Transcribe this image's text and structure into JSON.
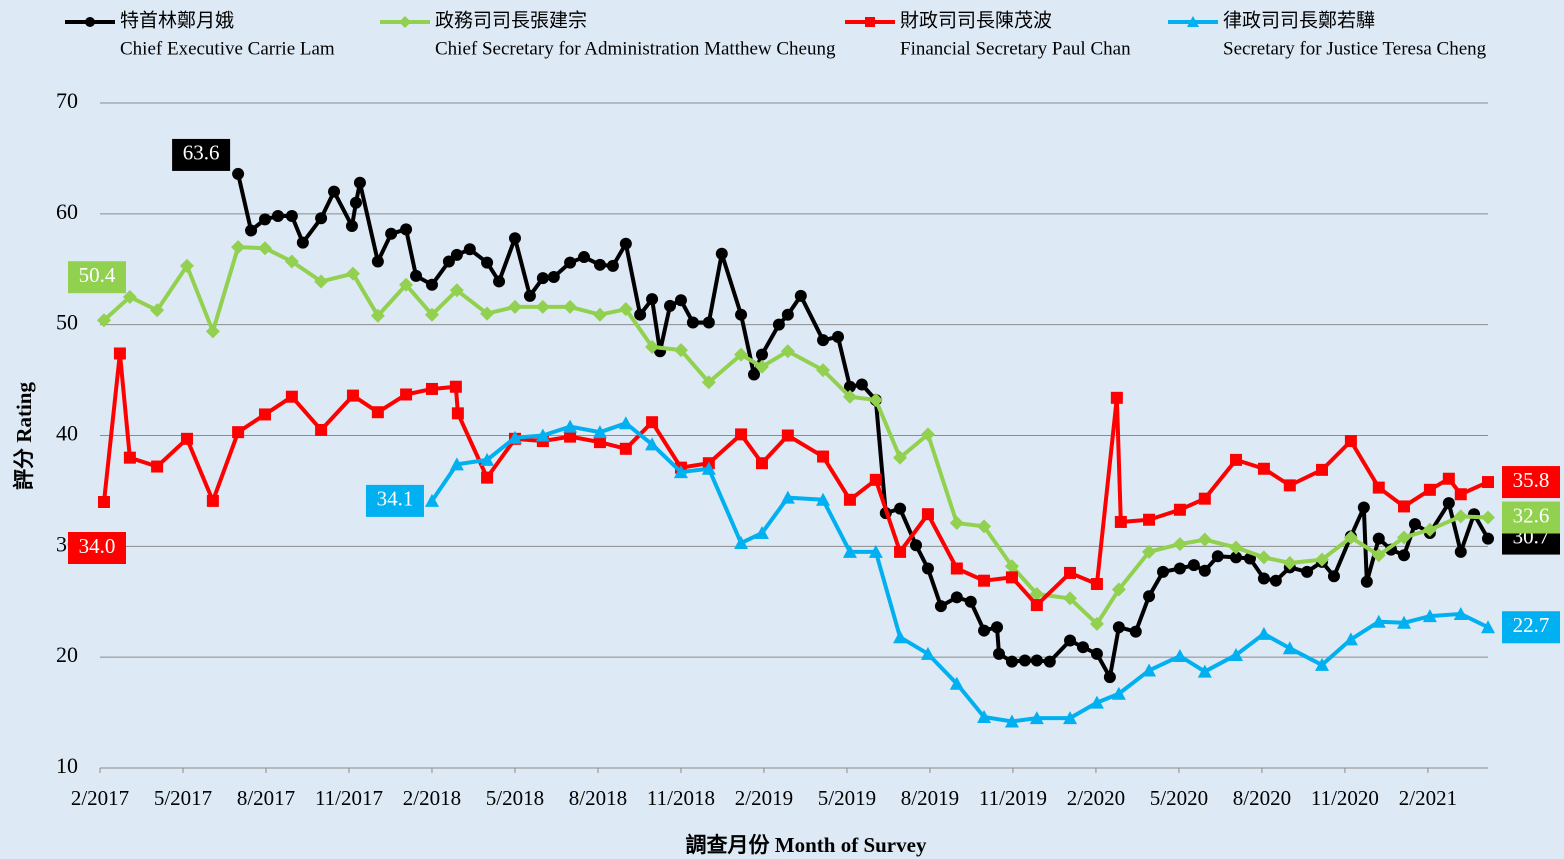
{
  "chart_data": {
    "type": "line",
    "x_label": "調查月份 Month of Survey",
    "y_label": "評分 Rating",
    "xlim": [
      2017.083,
      2021.264
    ],
    "xticks": [
      {
        "value": 2017.083,
        "label": "2/2017"
      },
      {
        "value": 2017.333,
        "label": "5/2017"
      },
      {
        "value": 2017.583,
        "label": "8/2017"
      },
      {
        "value": 2017.833,
        "label": "11/2017"
      },
      {
        "value": 2018.083,
        "label": "2/2018"
      },
      {
        "value": 2018.333,
        "label": "5/2018"
      },
      {
        "value": 2018.583,
        "label": "8/2018"
      },
      {
        "value": 2018.833,
        "label": "11/2018"
      },
      {
        "value": 2019.083,
        "label": "2/2019"
      },
      {
        "value": 2019.333,
        "label": "5/2019"
      },
      {
        "value": 2019.583,
        "label": "8/2019"
      },
      {
        "value": 2019.833,
        "label": "11/2019"
      },
      {
        "value": 2020.083,
        "label": "2/2020"
      },
      {
        "value": 2020.333,
        "label": "5/2020"
      },
      {
        "value": 2020.583,
        "label": "8/2020"
      },
      {
        "value": 2020.833,
        "label": "11/2020"
      },
      {
        "value": 2021.083,
        "label": "2/2021"
      }
    ],
    "ylim": [
      10,
      70
    ],
    "yticks": [
      10,
      20,
      30,
      40,
      50,
      60,
      70
    ],
    "grid": true,
    "series": [
      {
        "name": "特首林鄭月娥",
        "name_en": "Chief Executive Carrie Lam",
        "color": "#000000",
        "marker": "circle",
        "x": [
          2017.499,
          2017.538,
          2017.58,
          2017.619,
          2017.661,
          2017.694,
          2017.749,
          2017.788,
          2017.842,
          2017.854,
          2017.866,
          2017.92,
          2017.96,
          2018.005,
          2018.035,
          2018.083,
          2018.134,
          2018.158,
          2018.197,
          2018.249,
          2018.285,
          2018.333,
          2018.378,
          2018.417,
          2018.45,
          2018.499,
          2018.541,
          2018.589,
          2018.628,
          2018.667,
          2018.71,
          2018.746,
          2018.77,
          2018.8,
          2018.833,
          2018.869,
          2018.917,
          2018.956,
          2019.014,
          2019.053,
          2019.077,
          2019.128,
          2019.155,
          2019.194,
          2019.261,
          2019.306,
          2019.342,
          2019.378,
          2019.42,
          2019.45,
          2019.493,
          2019.541,
          2019.577,
          2019.616,
          2019.664,
          2019.706,
          2019.746,
          2019.785,
          2019.791,
          2019.83,
          2019.869,
          2019.905,
          2019.944,
          2020.005,
          2020.044,
          2020.086,
          2020.125,
          2020.152,
          2020.203,
          2020.243,
          2020.285,
          2020.336,
          2020.378,
          2020.411,
          2020.45,
          2020.505,
          2020.547,
          2020.589,
          2020.625,
          2020.667,
          2020.719,
          2020.764,
          2020.8,
          2020.851,
          2020.89,
          2020.899,
          2020.935,
          2020.972,
          2021.011,
          2021.044,
          2021.089,
          2021.146,
          2021.182,
          2021.222,
          2021.264
        ],
        "values": [
          63.6,
          58.5,
          59.5,
          59.8,
          59.8,
          57.4,
          59.6,
          62.0,
          58.9,
          61.0,
          62.8,
          55.7,
          58.2,
          58.6,
          54.4,
          53.6,
          55.7,
          56.3,
          56.8,
          55.6,
          53.9,
          57.8,
          52.6,
          54.2,
          54.3,
          55.6,
          56.1,
          55.4,
          55.3,
          57.3,
          50.9,
          52.3,
          47.6,
          51.7,
          52.2,
          50.2,
          50.2,
          56.4,
          50.9,
          45.5,
          47.3,
          50.0,
          50.9,
          52.6,
          48.6,
          48.9,
          44.4,
          44.6,
          43.2,
          33.0,
          33.4,
          30.1,
          28.0,
          24.6,
          25.4,
          25.0,
          22.4,
          22.7,
          20.3,
          19.6,
          19.7,
          19.7,
          19.6,
          21.5,
          20.9,
          20.3,
          18.2,
          22.7,
          22.3,
          25.5,
          27.7,
          28.0,
          28.3,
          27.8,
          29.1,
          29.0,
          28.9,
          27.1,
          26.9,
          28.1,
          27.7,
          28.6,
          27.3,
          30.9,
          33.5,
          26.8,
          30.7,
          29.7,
          29.2,
          32.0,
          31.2,
          33.9,
          29.5,
          32.9,
          30.7
        ],
        "value_labels": [
          "63.6",
          null,
          null,
          null,
          null,
          null,
          null,
          null,
          null,
          null,
          null,
          null,
          null,
          null,
          null,
          null,
          null,
          null,
          null,
          null,
          null,
          null,
          null,
          null,
          null,
          null,
          null,
          null,
          null,
          null,
          null,
          null,
          null,
          null,
          null,
          null,
          null,
          null,
          null,
          null,
          null,
          null,
          null,
          null,
          null,
          null,
          null,
          null,
          null,
          null,
          null,
          null,
          null,
          null,
          null,
          null,
          null,
          null,
          null,
          null,
          null,
          null,
          null,
          null,
          null,
          null,
          null,
          null,
          null,
          null,
          null,
          null,
          null,
          null,
          null,
          null,
          null,
          null,
          null,
          null,
          null,
          null,
          null,
          null,
          null,
          null,
          null,
          null,
          null,
          null,
          null,
          null,
          null,
          null,
          "30.7"
        ]
      },
      {
        "name": "政務司司長張建宗",
        "name_en": "Chief Secretary for Administration Matthew Cheung",
        "color": "#92d050",
        "marker": "diamond",
        "x": [
          2017.095,
          2017.173,
          2017.255,
          2017.345,
          2017.423,
          2017.499,
          2017.58,
          2017.661,
          2017.749,
          2017.845,
          2017.92,
          2018.005,
          2018.083,
          2018.158,
          2018.249,
          2018.333,
          2018.417,
          2018.499,
          2018.589,
          2018.667,
          2018.746,
          2018.833,
          2018.917,
          2019.014,
          2019.077,
          2019.155,
          2019.261,
          2019.342,
          2019.42,
          2019.493,
          2019.577,
          2019.664,
          2019.746,
          2019.83,
          2019.905,
          2020.005,
          2020.086,
          2020.152,
          2020.243,
          2020.336,
          2020.411,
          2020.505,
          2020.589,
          2020.667,
          2020.764,
          2020.851,
          2020.935,
          2021.011,
          2021.089,
          2021.182,
          2021.264
        ],
        "values": [
          50.4,
          52.5,
          51.3,
          55.3,
          49.4,
          57.0,
          56.9,
          55.7,
          53.9,
          54.6,
          50.8,
          53.6,
          50.9,
          53.1,
          51.0,
          51.6,
          51.6,
          51.6,
          50.9,
          51.4,
          48.0,
          47.7,
          44.8,
          47.3,
          46.2,
          47.6,
          45.9,
          43.5,
          43.2,
          38.0,
          40.1,
          32.1,
          31.8,
          28.2,
          25.7,
          25.3,
          23.0,
          26.1,
          29.5,
          30.2,
          30.6,
          29.9,
          29.0,
          28.5,
          28.8,
          30.8,
          29.2,
          30.8,
          31.5,
          32.7,
          32.6
        ],
        "value_labels": [
          "50.4",
          null,
          null,
          null,
          null,
          null,
          null,
          null,
          null,
          null,
          null,
          null,
          null,
          null,
          null,
          null,
          null,
          null,
          null,
          null,
          null,
          null,
          null,
          null,
          null,
          null,
          null,
          null,
          null,
          null,
          null,
          null,
          null,
          null,
          null,
          null,
          null,
          null,
          null,
          null,
          null,
          null,
          null,
          null,
          null,
          null,
          null,
          null,
          null,
          null,
          "32.6"
        ]
      },
      {
        "name": "財政司司長陳茂波",
        "name_en": "Financial Secretary Paul Chan",
        "color": "#ff0000",
        "marker": "square",
        "x": [
          2017.095,
          2017.143,
          2017.173,
          2017.255,
          2017.345,
          2017.423,
          2017.499,
          2017.58,
          2017.661,
          2017.749,
          2017.845,
          2017.92,
          2018.005,
          2018.083,
          2018.155,
          2018.161,
          2018.249,
          2018.333,
          2018.417,
          2018.499,
          2018.589,
          2018.667,
          2018.746,
          2018.833,
          2018.917,
          2019.014,
          2019.077,
          2019.155,
          2019.261,
          2019.342,
          2019.42,
          2019.493,
          2019.577,
          2019.664,
          2019.746,
          2019.83,
          2019.905,
          2020.005,
          2020.086,
          2020.146,
          2020.158,
          2020.243,
          2020.336,
          2020.411,
          2020.505,
          2020.589,
          2020.667,
          2020.764,
          2020.851,
          2020.935,
          2021.011,
          2021.089,
          2021.146,
          2021.182,
          2021.264
        ],
        "values": [
          34.0,
          47.4,
          38.0,
          37.2,
          39.7,
          34.1,
          40.3,
          41.9,
          43.5,
          40.5,
          43.6,
          42.1,
          43.7,
          44.2,
          44.4,
          42.0,
          36.2,
          39.7,
          39.5,
          39.9,
          39.4,
          38.8,
          41.2,
          37.1,
          37.5,
          40.1,
          37.5,
          40.0,
          38.1,
          34.2,
          36.0,
          29.5,
          32.9,
          28.0,
          26.9,
          27.2,
          24.7,
          27.6,
          26.6,
          43.4,
          32.2,
          32.4,
          33.3,
          34.3,
          37.8,
          37.0,
          35.5,
          36.9,
          39.5,
          35.3,
          33.6,
          35.1,
          36.1,
          34.7,
          35.8
        ],
        "value_labels": [
          "34.0",
          null,
          null,
          null,
          null,
          null,
          null,
          null,
          null,
          null,
          null,
          null,
          null,
          null,
          null,
          null,
          null,
          null,
          null,
          null,
          null,
          null,
          null,
          null,
          null,
          null,
          null,
          null,
          null,
          null,
          null,
          null,
          null,
          null,
          null,
          null,
          null,
          null,
          null,
          null,
          null,
          null,
          null,
          null,
          null,
          null,
          null,
          null,
          null,
          null,
          null,
          null,
          null,
          null,
          "35.8"
        ]
      },
      {
        "name": "律政司司長鄭若驊",
        "name_en": "Secretary for Justice Teresa Cheng",
        "color": "#00b0f0",
        "marker": "triangle",
        "x": [
          2018.083,
          2018.158,
          2018.249,
          2018.333,
          2018.417,
          2018.499,
          2018.589,
          2018.667,
          2018.746,
          2018.833,
          2018.917,
          2019.014,
          2019.077,
          2019.155,
          2019.261,
          2019.342,
          2019.42,
          2019.493,
          2019.577,
          2019.664,
          2019.746,
          2019.83,
          2019.905,
          2020.005,
          2020.086,
          2020.152,
          2020.243,
          2020.336,
          2020.411,
          2020.505,
          2020.589,
          2020.667,
          2020.764,
          2020.851,
          2020.935,
          2021.011,
          2021.089,
          2021.182,
          2021.264
        ],
        "values": [
          34.1,
          37.4,
          37.8,
          39.8,
          40.0,
          40.8,
          40.3,
          41.1,
          39.2,
          36.7,
          37.0,
          30.3,
          31.2,
          34.4,
          34.2,
          29.5,
          29.5,
          21.8,
          20.3,
          17.6,
          14.6,
          14.2,
          14.5,
          14.5,
          15.9,
          16.7,
          18.8,
          20.1,
          18.7,
          20.2,
          22.1,
          20.8,
          19.3,
          21.6,
          23.2,
          23.1,
          23.7,
          23.9,
          22.7
        ],
        "value_labels": [
          "34.1",
          null,
          null,
          null,
          null,
          null,
          null,
          null,
          null,
          null,
          null,
          null,
          null,
          null,
          null,
          null,
          null,
          null,
          null,
          null,
          null,
          null,
          null,
          null,
          null,
          null,
          null,
          null,
          null,
          null,
          null,
          null,
          null,
          null,
          null,
          null,
          null,
          null,
          "22.7"
        ]
      }
    ]
  }
}
